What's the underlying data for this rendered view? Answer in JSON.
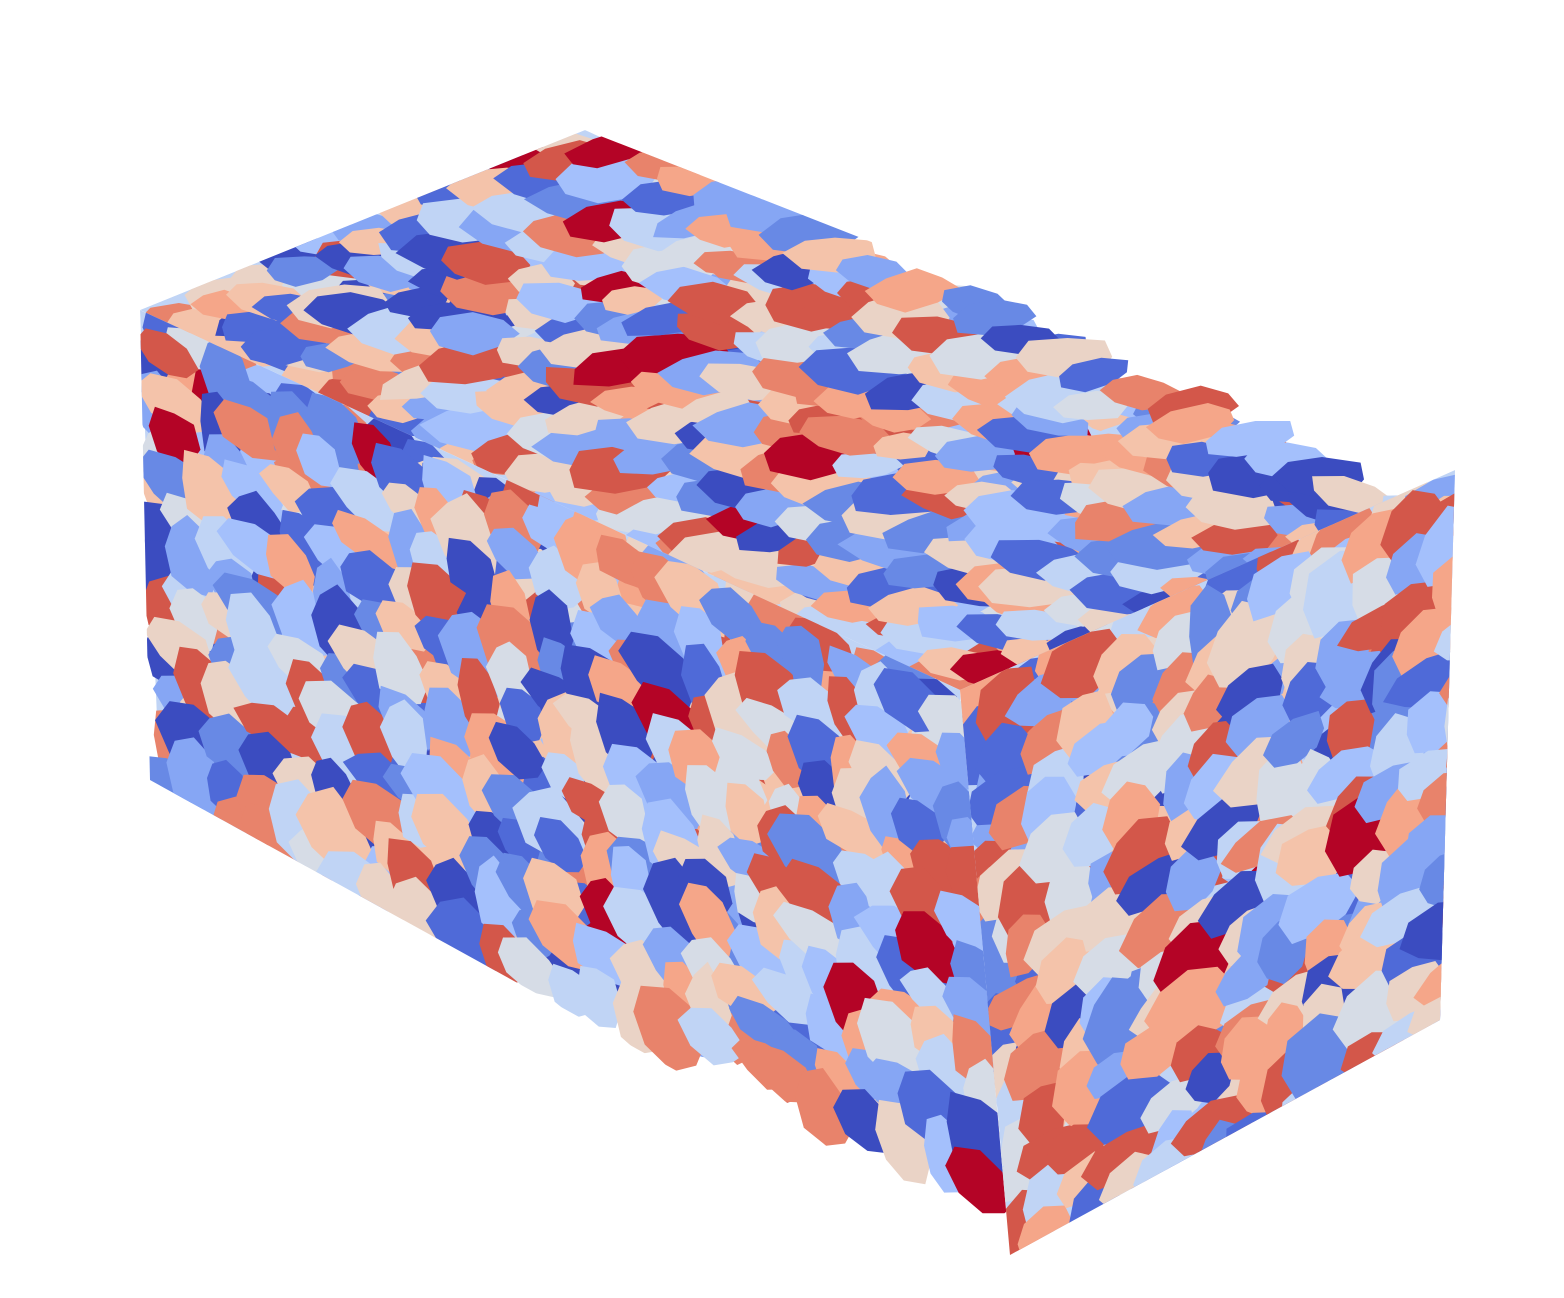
{
  "scene": {
    "background": "#ffffff",
    "object": "grain-colored-volume",
    "colormap": [
      "#3b4cc0",
      "#4f6ad8",
      "#6889e5",
      "#86a6f4",
      "#a4c0fc",
      "#c0d4f5",
      "#d6dce6",
      "#ead3c6",
      "#f4c3aa",
      "#f5a689",
      "#e8836b",
      "#d3574a",
      "#b40426"
    ]
  }
}
